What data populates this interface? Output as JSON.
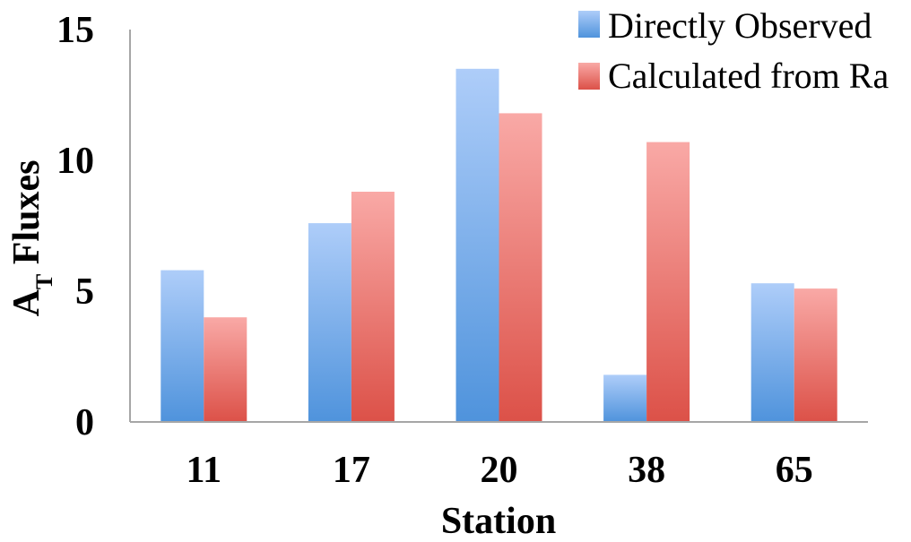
{
  "chart_data": {
    "type": "bar",
    "categories": [
      "11",
      "17",
      "20",
      "38",
      "65"
    ],
    "series": [
      {
        "name": "Directly Observed",
        "values": [
          5.8,
          7.6,
          13.5,
          1.8,
          5.3
        ],
        "color_top": "#aecdf9",
        "color_bottom": "#4f93dc"
      },
      {
        "name": "Calculated from Ra",
        "values": [
          4.0,
          8.8,
          11.8,
          10.7,
          5.1
        ],
        "color_top": "#f9a9a6",
        "color_bottom": "#dc5148"
      }
    ],
    "xlabel": "Station",
    "ylabel_main": "A",
    "ylabel_sub": "T",
    "ylabel_rest": " Fluxes",
    "ylim": [
      0,
      15
    ],
    "yticks": [
      "0",
      "5",
      "10",
      "15"
    ],
    "grid": false,
    "legend_position": "top-right",
    "axis_color": "#a6a6a6"
  }
}
